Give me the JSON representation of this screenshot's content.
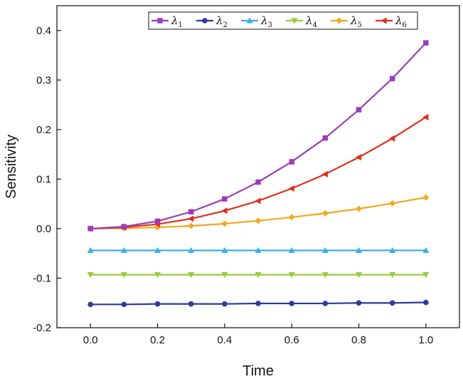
{
  "chart_data": {
    "type": "line",
    "title": "",
    "xlabel": "Time",
    "ylabel": "Sensitivity",
    "xlim": [
      -0.1,
      1.1
    ],
    "ylim": [
      -0.2,
      0.45
    ],
    "x_ticks": [
      0.0,
      0.2,
      0.4,
      0.6,
      0.8,
      1.0
    ],
    "x_tick_labels": [
      "0.0",
      "0.2",
      "0.4",
      "0.6",
      "0.8",
      "1.0"
    ],
    "y_ticks": [
      -0.2,
      -0.1,
      0.0,
      0.1,
      0.2,
      0.3,
      0.4
    ],
    "y_tick_labels": [
      "-0.2",
      "-0.1",
      "0.0",
      "0.1",
      "0.2",
      "0.3",
      "0.4"
    ],
    "grid": false,
    "legend_position": "top-right",
    "x": [
      0.0,
      0.1,
      0.2,
      0.3,
      0.4,
      0.5,
      0.6,
      0.7,
      0.8,
      0.9,
      1.0
    ],
    "series": [
      {
        "name": "λ1",
        "symbol": "λ",
        "sub": "1",
        "marker": "square",
        "color": "#9B3DB8",
        "values": [
          0.0,
          0.004,
          0.015,
          0.034,
          0.06,
          0.094,
          0.135,
          0.183,
          0.24,
          0.303,
          0.375
        ]
      },
      {
        "name": "λ2",
        "symbol": "λ",
        "sub": "2",
        "marker": "circle",
        "color": "#2E3A9E",
        "values": [
          -0.153,
          -0.153,
          -0.152,
          -0.152,
          -0.152,
          -0.151,
          -0.151,
          -0.151,
          -0.15,
          -0.15,
          -0.149
        ]
      },
      {
        "name": "λ3",
        "symbol": "λ",
        "sub": "3",
        "marker": "triangle-up",
        "color": "#3AB0E2",
        "values": [
          -0.044,
          -0.044,
          -0.044,
          -0.044,
          -0.044,
          -0.044,
          -0.044,
          -0.044,
          -0.044,
          -0.044,
          -0.044
        ]
      },
      {
        "name": "λ4",
        "symbol": "λ",
        "sub": "4",
        "marker": "triangle-down",
        "color": "#9CCB3B",
        "values": [
          -0.093,
          -0.093,
          -0.093,
          -0.093,
          -0.093,
          -0.093,
          -0.093,
          -0.093,
          -0.093,
          -0.093,
          -0.093
        ]
      },
      {
        "name": "λ5",
        "symbol": "λ",
        "sub": "5",
        "marker": "diamond",
        "color": "#F2A81D",
        "values": [
          0.0,
          0.0005,
          0.0025,
          0.0055,
          0.01,
          0.016,
          0.023,
          0.031,
          0.04,
          0.051,
          0.063
        ]
      },
      {
        "name": "λ6",
        "symbol": "λ",
        "sub": "6",
        "marker": "triangle-left",
        "color": "#E0301E",
        "values": [
          0.0,
          0.0025,
          0.009,
          0.02,
          0.036,
          0.056,
          0.081,
          0.11,
          0.144,
          0.182,
          0.225
        ]
      }
    ]
  }
}
